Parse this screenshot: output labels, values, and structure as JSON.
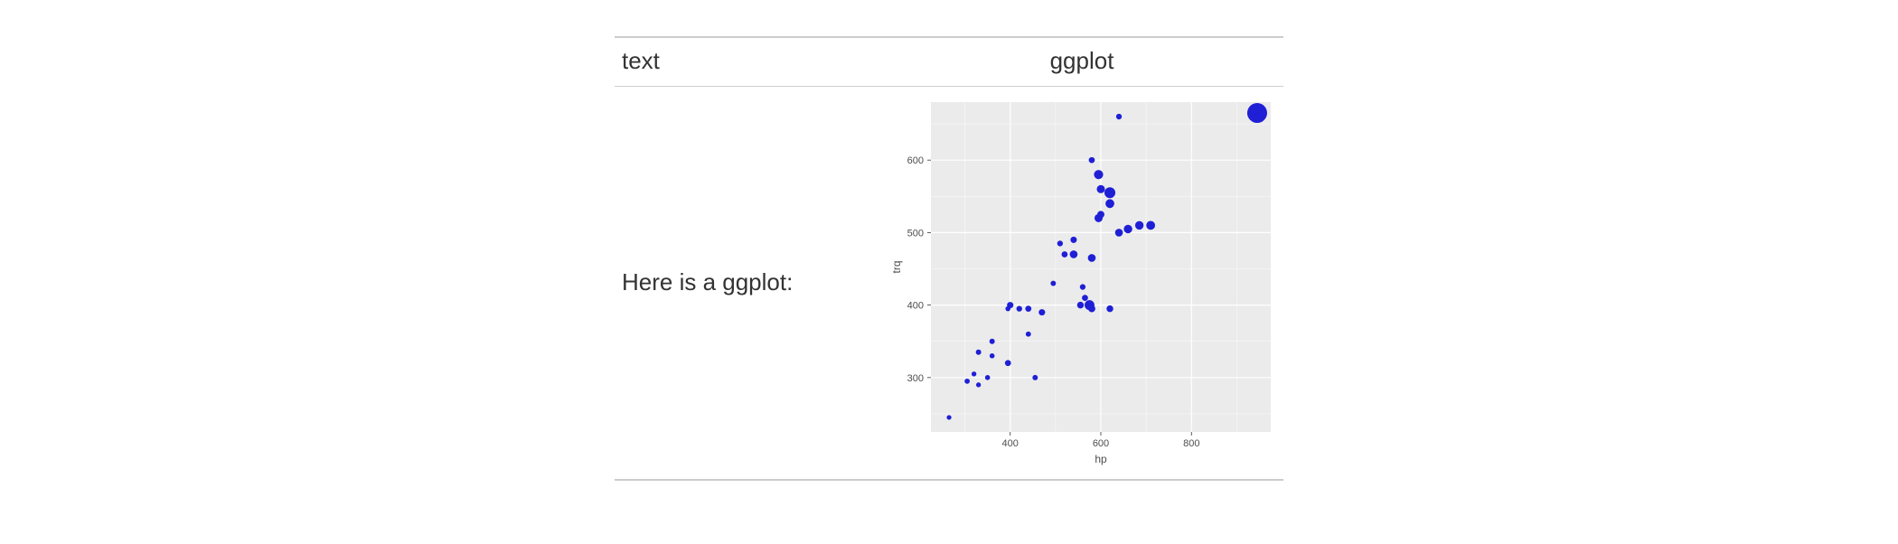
{
  "table": {
    "headers": {
      "text": "text",
      "ggplot": "ggplot"
    },
    "row": {
      "text": "Here is a ggplot:"
    }
  },
  "chart": {
    "type": "scatter",
    "background_color": "#ffffff",
    "panel_background": "#ebebeb",
    "grid_color": "#ffffff",
    "point_color": "#1f1fd6",
    "point_opacity": 1.0,
    "xlabel": "hp",
    "ylabel": "trq",
    "label_fontsize": 12,
    "tick_fontsize": 11,
    "xlim": [
      225,
      975
    ],
    "ylim": [
      225,
      680
    ],
    "x_ticks": [
      400,
      600,
      800
    ],
    "y_ticks": [
      300,
      400,
      500,
      600
    ],
    "x_minor": [
      300,
      500,
      700,
      900
    ],
    "y_minor": [
      250,
      350,
      450,
      550,
      650
    ],
    "size_scale": {
      "min_r": 2.4,
      "max_r": 11,
      "min_val": 1,
      "max_val": 10
    },
    "points": [
      {
        "x": 265,
        "y": 245,
        "s": 1.2
      },
      {
        "x": 305,
        "y": 295,
        "s": 1.5
      },
      {
        "x": 330,
        "y": 290,
        "s": 1.3
      },
      {
        "x": 320,
        "y": 305,
        "s": 1.3
      },
      {
        "x": 350,
        "y": 300,
        "s": 1.4
      },
      {
        "x": 330,
        "y": 335,
        "s": 1.6
      },
      {
        "x": 360,
        "y": 350,
        "s": 1.6
      },
      {
        "x": 360,
        "y": 330,
        "s": 1.4
      },
      {
        "x": 395,
        "y": 320,
        "s": 2.0
      },
      {
        "x": 395,
        "y": 395,
        "s": 1.4
      },
      {
        "x": 400,
        "y": 400,
        "s": 2.2
      },
      {
        "x": 420,
        "y": 395,
        "s": 1.8
      },
      {
        "x": 440,
        "y": 360,
        "s": 1.5
      },
      {
        "x": 440,
        "y": 395,
        "s": 2.0
      },
      {
        "x": 455,
        "y": 300,
        "s": 1.6
      },
      {
        "x": 470,
        "y": 390,
        "s": 2.2
      },
      {
        "x": 495,
        "y": 430,
        "s": 1.6
      },
      {
        "x": 510,
        "y": 485,
        "s": 1.8
      },
      {
        "x": 520,
        "y": 470,
        "s": 2.0
      },
      {
        "x": 540,
        "y": 490,
        "s": 2.2
      },
      {
        "x": 540,
        "y": 470,
        "s": 3.0
      },
      {
        "x": 565,
        "y": 410,
        "s": 2.0
      },
      {
        "x": 555,
        "y": 400,
        "s": 2.4
      },
      {
        "x": 560,
        "y": 425,
        "s": 1.8
      },
      {
        "x": 580,
        "y": 465,
        "s": 3.0
      },
      {
        "x": 580,
        "y": 395,
        "s": 2.6
      },
      {
        "x": 575,
        "y": 400,
        "s": 4.2
      },
      {
        "x": 580,
        "y": 600,
        "s": 2.0
      },
      {
        "x": 595,
        "y": 580,
        "s": 3.8
      },
      {
        "x": 600,
        "y": 560,
        "s": 3.2
      },
      {
        "x": 595,
        "y": 520,
        "s": 3.2
      },
      {
        "x": 600,
        "y": 525,
        "s": 2.6
      },
      {
        "x": 620,
        "y": 555,
        "s": 4.8
      },
      {
        "x": 620,
        "y": 540,
        "s": 3.6
      },
      {
        "x": 620,
        "y": 395,
        "s": 2.4
      },
      {
        "x": 640,
        "y": 500,
        "s": 3.0
      },
      {
        "x": 640,
        "y": 660,
        "s": 1.8
      },
      {
        "x": 660,
        "y": 505,
        "s": 3.4
      },
      {
        "x": 685,
        "y": 510,
        "s": 3.4
      },
      {
        "x": 710,
        "y": 510,
        "s": 3.6
      },
      {
        "x": 945,
        "y": 665,
        "s": 10.0
      }
    ]
  }
}
